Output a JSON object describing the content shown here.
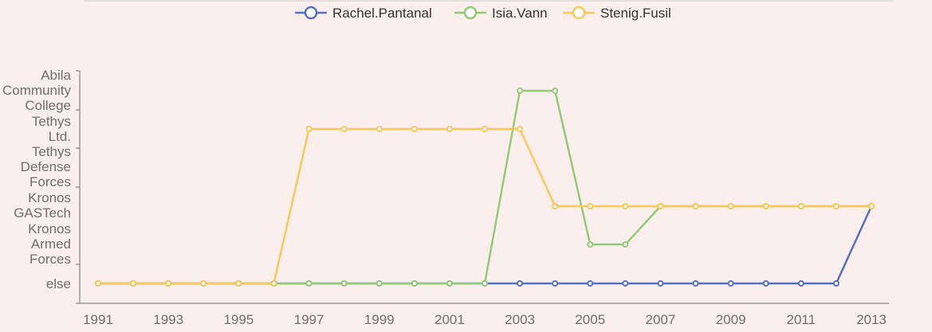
{
  "chart_data": {
    "type": "line",
    "x": [
      "1991",
      "1992",
      "1993",
      "1994",
      "1995",
      "1996",
      "1997",
      "1998",
      "1999",
      "2000",
      "2001",
      "2002",
      "2003",
      "2004",
      "2005",
      "2006",
      "2007",
      "2008",
      "2009",
      "2010",
      "2011",
      "2012",
      "2013"
    ],
    "x_tick_labels": [
      "1991",
      "1993",
      "1995",
      "1997",
      "1999",
      "2001",
      "2003",
      "2005",
      "2007",
      "2009",
      "2011",
      "2013"
    ],
    "categories_y": [
      "else",
      "Kronos Armed Forces",
      "Kronos GASTech",
      "Tethys Defense Forces",
      "Tethys Ltd.",
      "Abila Community College"
    ],
    "series": [
      {
        "name": "Rachel.Pantanal",
        "color": "#5470c6",
        "values": [
          "else",
          "else",
          "else",
          "else",
          "else",
          "else",
          "else",
          "else",
          "else",
          "else",
          "else",
          "else",
          "else",
          "else",
          "else",
          "else",
          "else",
          "else",
          "else",
          "else",
          "else",
          "else",
          "Kronos GASTech"
        ]
      },
      {
        "name": "Isia.Vann",
        "color": "#91cc75",
        "values": [
          "else",
          "else",
          "else",
          "else",
          "else",
          "else",
          "else",
          "else",
          "else",
          "else",
          "else",
          "else",
          "Abila Community College",
          "Abila Community College",
          "Kronos Armed Forces",
          "Kronos Armed Forces",
          "Kronos GASTech",
          "Kronos GASTech",
          "Kronos GASTech",
          "Kronos GASTech",
          "Kronos GASTech",
          "Kronos GASTech",
          "Kronos GASTech"
        ]
      },
      {
        "name": "Stenig.Fusil",
        "color": "#fac858",
        "values": [
          "else",
          "else",
          "else",
          "else",
          "else",
          "else",
          "Tethys Ltd.",
          "Tethys Ltd.",
          "Tethys Ltd.",
          "Tethys Ltd.",
          "Tethys Ltd.",
          "Tethys Ltd.",
          "Tethys Ltd.",
          "Kronos GASTech",
          "Kronos GASTech",
          "Kronos GASTech",
          "Kronos GASTech",
          "Kronos GASTech",
          "Kronos GASTech",
          "Kronos GASTech",
          "Kronos GASTech",
          "Kronos GASTech",
          "Kronos GASTech"
        ]
      }
    ],
    "legend_position": "top-center",
    "grid": false
  }
}
